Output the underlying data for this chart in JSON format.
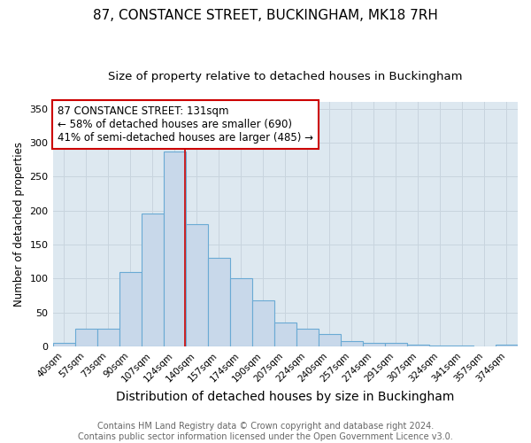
{
  "title1": "87, CONSTANCE STREET, BUCKINGHAM, MK18 7RH",
  "title2": "Size of property relative to detached houses in Buckingham",
  "xlabel": "Distribution of detached houses by size in Buckingham",
  "ylabel": "Number of detached properties",
  "categories": [
    "40sqm",
    "57sqm",
    "73sqm",
    "90sqm",
    "107sqm",
    "124sqm",
    "140sqm",
    "157sqm",
    "174sqm",
    "190sqm",
    "207sqm",
    "224sqm",
    "240sqm",
    "257sqm",
    "274sqm",
    "291sqm",
    "307sqm",
    "324sqm",
    "341sqm",
    "357sqm",
    "374sqm"
  ],
  "values": [
    5,
    26,
    26,
    110,
    195,
    287,
    180,
    130,
    100,
    68,
    35,
    26,
    18,
    8,
    5,
    5,
    3,
    1,
    1,
    0,
    2
  ],
  "bar_color": "#c8d8ea",
  "bar_edgecolor": "#6aaad4",
  "bar_linewidth": 0.8,
  "vline_x": 5.47,
  "vline_color": "#cc0000",
  "vline_linewidth": 1.2,
  "annotation_line1": "87 CONSTANCE STREET: 131sqm",
  "annotation_line2": "← 58% of detached houses are smaller (690)",
  "annotation_line3": "41% of semi-detached houses are larger (485) →",
  "ylim": [
    0,
    360
  ],
  "yticks": [
    0,
    50,
    100,
    150,
    200,
    250,
    300,
    350
  ],
  "grid_color": "#c8d4de",
  "background_color": "#dde8f0",
  "fig_background": "#ffffff",
  "footer1": "Contains HM Land Registry data © Crown copyright and database right 2024.",
  "footer2": "Contains public sector information licensed under the Open Government Licence v3.0.",
  "title1_fontsize": 11,
  "title2_fontsize": 9.5,
  "xlabel_fontsize": 10,
  "ylabel_fontsize": 8.5,
  "tick_fontsize": 7.5,
  "annotation_fontsize": 8.5,
  "footer_fontsize": 7
}
